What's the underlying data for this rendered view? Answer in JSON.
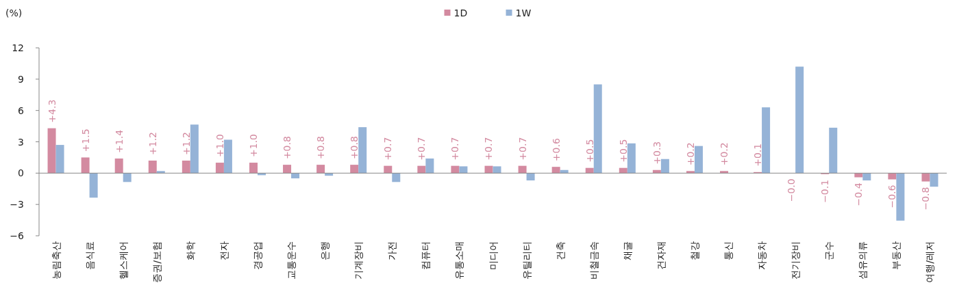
{
  "chart_data": {
    "type": "bar",
    "ylabel": "(%)",
    "ylim": [
      -6,
      12
    ],
    "yticks": [
      -6,
      -3,
      0,
      3,
      6,
      9,
      12
    ],
    "legend": "top",
    "categories": [
      "농림축산",
      "음식료",
      "헬스케어",
      "증권/보험",
      "화학",
      "전자",
      "경공업",
      "교통운수",
      "은행",
      "기계장비",
      "가전",
      "컴퓨터",
      "유통소매",
      "미디어",
      "유틸리티",
      "건축",
      "비철금속",
      "채굴",
      "건자재",
      "철강",
      "통신",
      "자동차",
      "전기장비",
      "군수",
      "섬유의류",
      "부동산",
      "여행/레저"
    ],
    "series": [
      {
        "name": "1D",
        "color": "#d38aa0",
        "values": [
          4.3,
          1.5,
          1.4,
          1.2,
          1.2,
          1.0,
          1.0,
          0.8,
          0.8,
          0.8,
          0.7,
          0.7,
          0.7,
          0.7,
          0.7,
          0.6,
          0.5,
          0.5,
          0.3,
          0.2,
          0.2,
          0.1,
          -0.0,
          -0.1,
          -0.4,
          -0.6,
          -0.8
        ],
        "value_labels": [
          "+4.3",
          "+1.5",
          "+1.4",
          "+1.2",
          "+1.2",
          "+1.0",
          "+1.0",
          "+0.8",
          "+0.8",
          "+0.8",
          "+0.7",
          "+0.7",
          "+0.7",
          "+0.7",
          "+0.7",
          "+0.6",
          "+0.5",
          "+0.5",
          "+0.3",
          "+0.2",
          "+0.2",
          "+0.1",
          "−0.0",
          "−0.1",
          "−0.4",
          "−0.6",
          "−0.8"
        ]
      },
      {
        "name": "1W",
        "color": "#95b3d7",
        "values": [
          2.7,
          -2.35,
          -0.85,
          0.2,
          4.65,
          3.2,
          -0.2,
          -0.5,
          -0.25,
          4.4,
          -0.85,
          1.4,
          0.65,
          0.65,
          -0.7,
          0.3,
          8.5,
          2.85,
          1.35,
          2.6,
          0,
          6.3,
          10.2,
          4.35,
          -0.7,
          -4.55,
          -1.3
        ]
      }
    ]
  }
}
